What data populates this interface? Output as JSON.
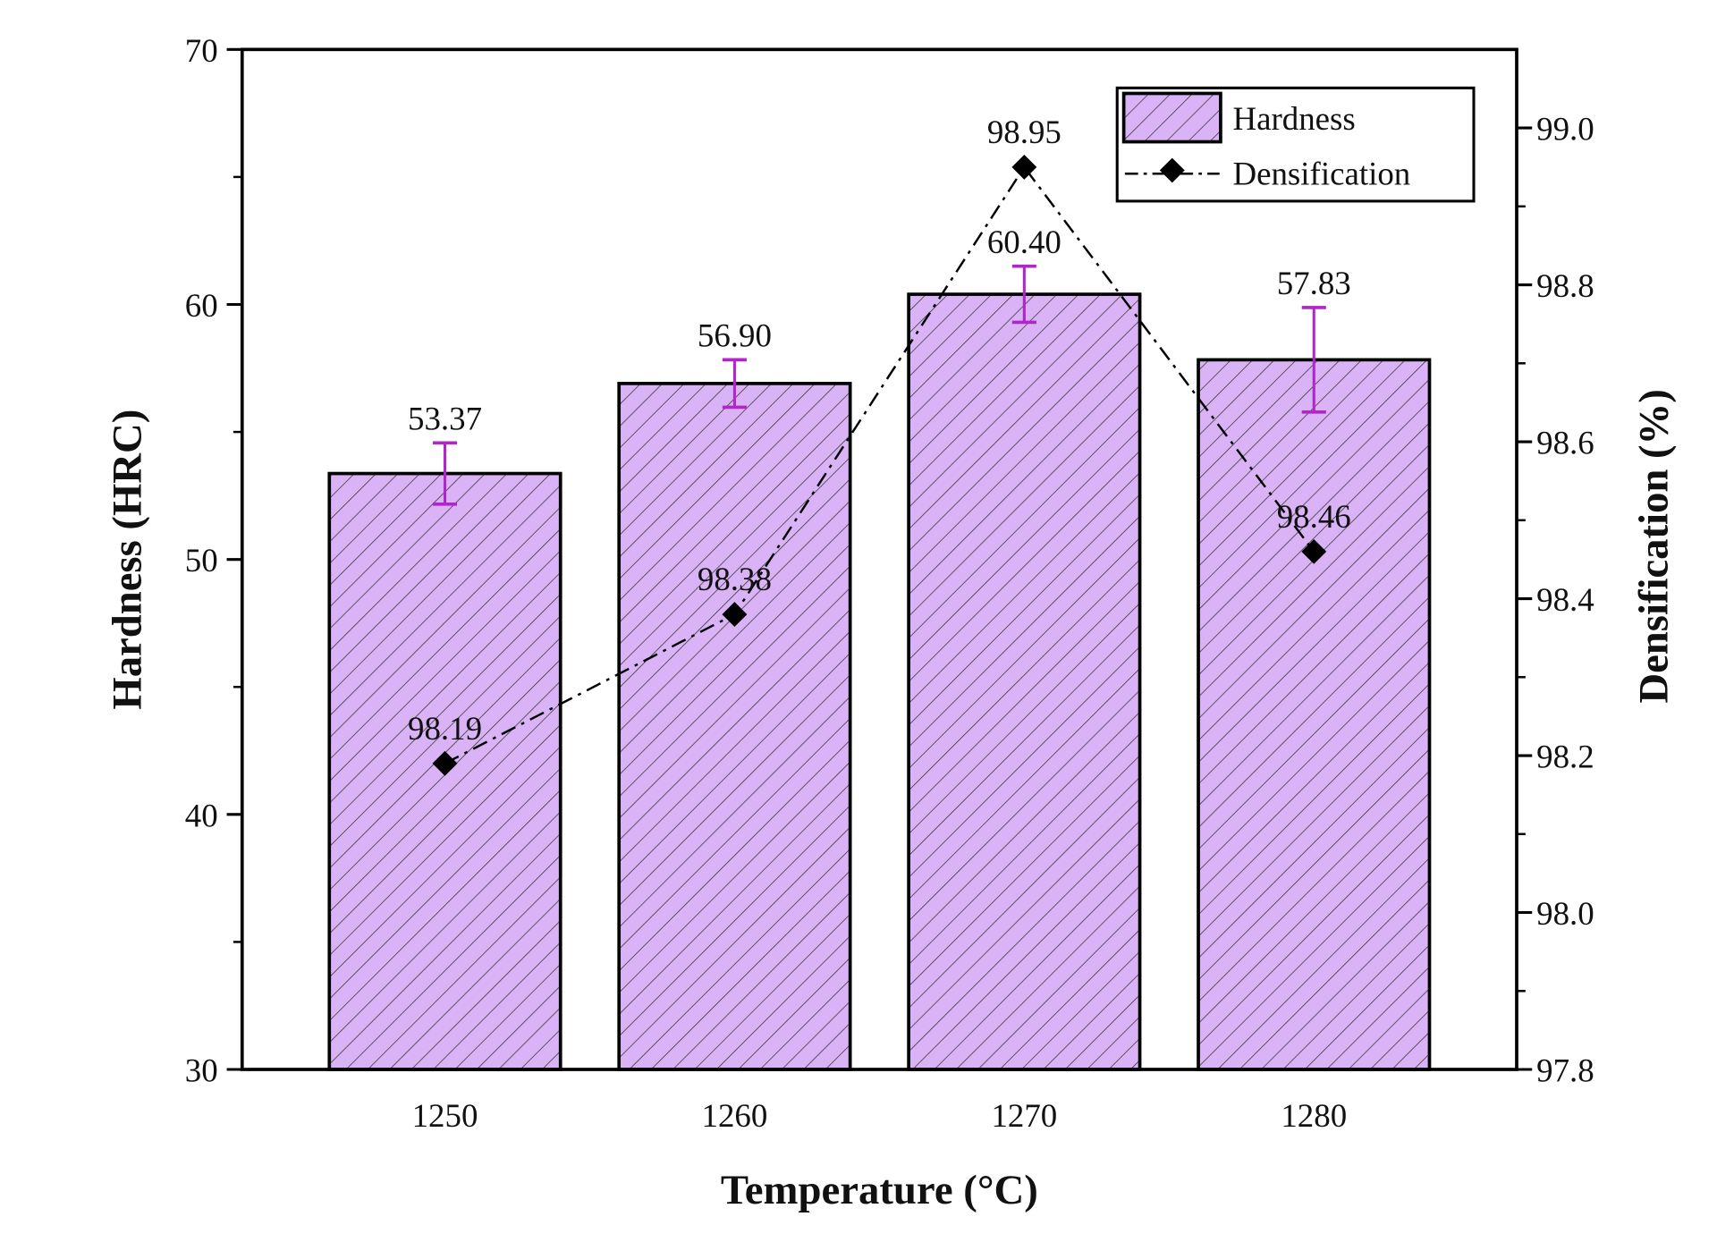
{
  "chart_data": {
    "type": "bar",
    "title": "",
    "xlabel": "Temperature (°C)",
    "ylabel": "Hardness (HRC)",
    "y2label": "Densification (%)",
    "categories": [
      "1250",
      "1260",
      "1270",
      "1280"
    ],
    "ylim": [
      30,
      70
    ],
    "y2lim": [
      97.8,
      99.1
    ],
    "yticks": [
      "30",
      "40",
      "50",
      "60",
      "70"
    ],
    "y2ticks": [
      "97.8",
      "98.0",
      "98.2",
      "98.4",
      "98.6",
      "98.8",
      "99.0"
    ],
    "series": [
      {
        "name": "Hardness",
        "type": "bar",
        "axis": "left",
        "values": [
          53.37,
          56.9,
          60.4,
          57.83
        ],
        "errors": [
          1.2,
          0.93,
          1.1,
          2.05
        ],
        "labels": [
          "53.37",
          "56.90",
          "60.40",
          "57.83"
        ],
        "color": "#d9b3f5",
        "error_color": "#b026c8"
      },
      {
        "name": "Densification",
        "type": "line",
        "axis": "right",
        "values": [
          98.19,
          98.38,
          98.95,
          98.46
        ],
        "labels": [
          "98.19",
          "98.38",
          "98.95",
          "98.46"
        ],
        "color": "#000000"
      }
    ],
    "legend": {
      "placement": "top-right",
      "entries": [
        "Hardness",
        "Densification"
      ]
    },
    "grid": false
  }
}
